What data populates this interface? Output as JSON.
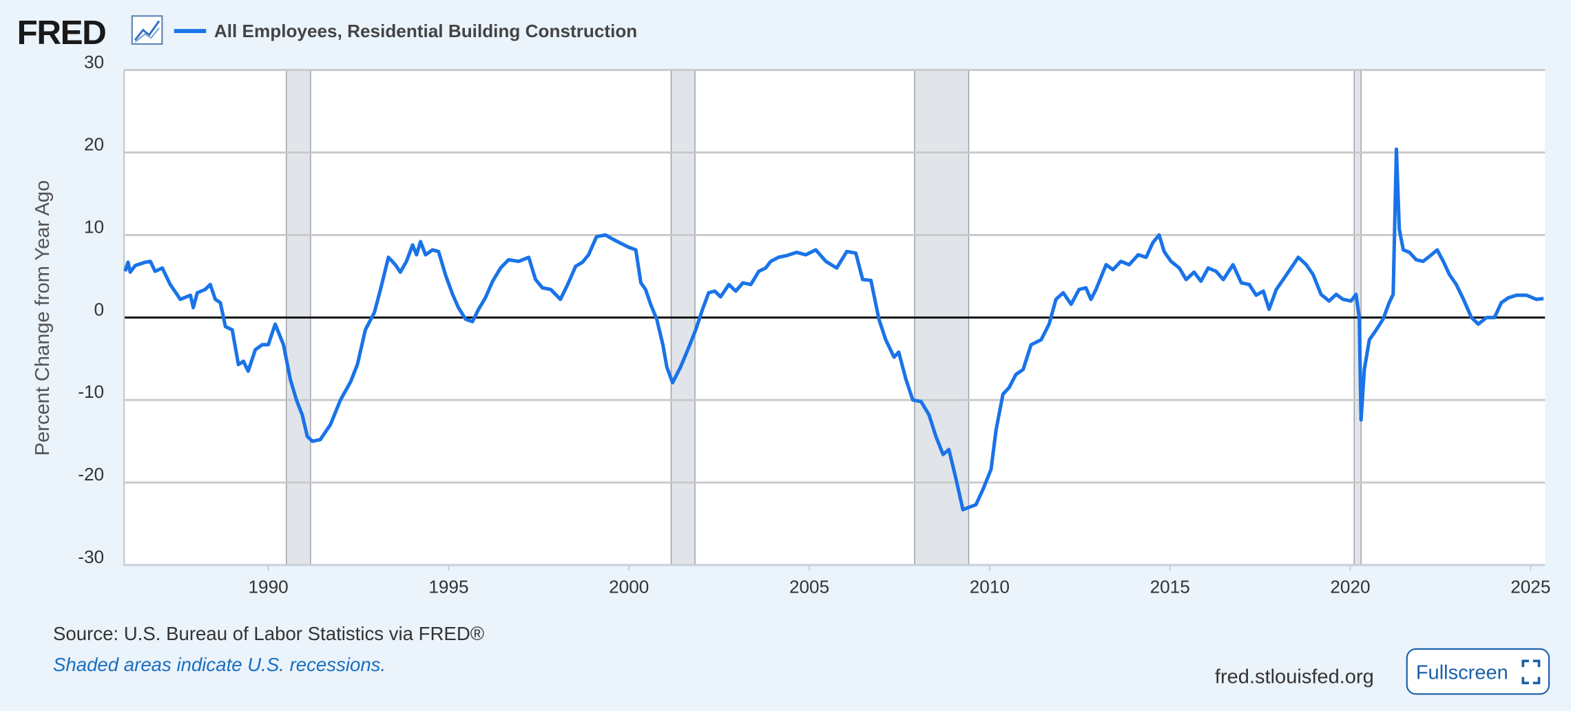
{
  "logo": "FRED",
  "footer": {
    "source": "Source: U.S. Bureau of Labor Statistics via FRED®",
    "note": "Shaded areas indicate U.S. recessions.",
    "site": "fred.stlouisfed.org",
    "button": "Fullscreen"
  },
  "chart_data": {
    "type": "line",
    "ylabel": "Percent Change from Year Ago",
    "xlim": [
      1986,
      2025.4
    ],
    "ylim": [
      -30,
      30
    ],
    "xticks": [
      1990,
      1995,
      2000,
      2005,
      2010,
      2015,
      2020,
      2025
    ],
    "yticks": [
      -30,
      -20,
      -10,
      0,
      10,
      20,
      30
    ],
    "grid": true,
    "recessions": [
      [
        1990.5,
        1991.17
      ],
      [
        2001.17,
        2001.83
      ],
      [
        2007.92,
        2009.42
      ],
      [
        2020.11,
        2020.3
      ]
    ],
    "x": [
      1986.03,
      1986.11,
      1986.17,
      1986.31,
      1986.59,
      1986.73,
      1986.86,
      1987.06,
      1987.28,
      1987.56,
      1987.84,
      1987.92,
      1988.03,
      1988.25,
      1988.39,
      1988.53,
      1988.67,
      1988.81,
      1989.0,
      1989.17,
      1989.31,
      1989.44,
      1989.64,
      1989.83,
      1990.0,
      1990.19,
      1990.42,
      1990.61,
      1990.78,
      1990.94,
      1991.08,
      1991.22,
      1991.44,
      1991.72,
      1992.0,
      1992.28,
      1992.47,
      1992.69,
      1992.94,
      1993.11,
      1993.33,
      1993.52,
      1993.66,
      1993.83,
      1994.0,
      1994.11,
      1994.22,
      1994.36,
      1994.55,
      1994.72,
      1994.91,
      1995.11,
      1995.27,
      1995.47,
      1995.66,
      1995.83,
      1996.02,
      1996.22,
      1996.44,
      1996.66,
      1996.94,
      1997.22,
      1997.41,
      1997.6,
      1997.83,
      1998.1,
      1998.3,
      1998.52,
      1998.71,
      1998.88,
      1999.1,
      1999.35,
      1999.55,
      1999.77,
      2000.0,
      2000.19,
      2000.33,
      2000.46,
      2000.6,
      2000.77,
      2000.94,
      2001.05,
      2001.21,
      2001.43,
      2001.66,
      2001.85,
      2002.04,
      2002.21,
      2002.38,
      2002.54,
      2002.77,
      2002.96,
      2003.16,
      2003.38,
      2003.6,
      2003.79,
      2003.93,
      2004.15,
      2004.37,
      2004.65,
      2004.9,
      2005.18,
      2005.46,
      2005.76,
      2006.04,
      2006.29,
      2006.48,
      2006.71,
      2006.93,
      2007.12,
      2007.35,
      2007.48,
      2007.68,
      2007.87,
      2008.1,
      2008.32,
      2008.51,
      2008.71,
      2008.87,
      2009.07,
      2009.26,
      2009.43,
      2009.62,
      2009.82,
      2010.04,
      2010.18,
      2010.37,
      2010.54,
      2010.73,
      2010.93,
      2011.15,
      2011.43,
      2011.65,
      2011.84,
      2012.04,
      2012.26,
      2012.48,
      2012.67,
      2012.81,
      2012.95,
      2013.23,
      2013.42,
      2013.64,
      2013.87,
      2014.12,
      2014.34,
      2014.53,
      2014.7,
      2014.84,
      2015.03,
      2015.26,
      2015.45,
      2015.67,
      2015.86,
      2016.06,
      2016.28,
      2016.48,
      2016.75,
      2016.98,
      2017.2,
      2017.39,
      2017.59,
      2017.75,
      2017.95,
      2018.14,
      2018.36,
      2018.56,
      2018.78,
      2018.97,
      2019.19,
      2019.41,
      2019.61,
      2019.8,
      2020.02,
      2020.16,
      2020.25,
      2020.3,
      2020.39,
      2020.53,
      2020.72,
      2020.91,
      2021.08,
      2021.19,
      2021.28,
      2021.36,
      2021.47,
      2021.64,
      2021.83,
      2022.02,
      2022.25,
      2022.41,
      2022.58,
      2022.75,
      2022.94,
      2023.14,
      2023.36,
      2023.55,
      2023.78,
      2024.0,
      2024.19,
      2024.39,
      2024.61,
      2024.89,
      2025.16,
      2025.36
    ],
    "series": [
      {
        "name": "All Employees, Residential Building Construction",
        "color": "#1a73e8",
        "values": [
          5.6,
          6.7,
          5.5,
          6.3,
          6.7,
          6.8,
          5.6,
          6,
          4,
          2.2,
          2.7,
          1.2,
          3,
          3.4,
          4,
          2.2,
          1.8,
          -1.1,
          -1.5,
          -5.7,
          -5.3,
          -6.5,
          -3.9,
          -3.3,
          -3.3,
          -0.8,
          -3.3,
          -7.5,
          -10,
          -11.8,
          -14.4,
          -15,
          -14.8,
          -13,
          -10,
          -7.8,
          -5.7,
          -1.5,
          0.6,
          3.4,
          7.3,
          6.4,
          5.5,
          6.8,
          8.8,
          7.6,
          9.2,
          7.6,
          8.2,
          8,
          5.2,
          2.8,
          1.2,
          -0.2,
          -0.5,
          1,
          2.4,
          4.4,
          6,
          7,
          6.8,
          7.3,
          4.6,
          3.6,
          3.4,
          2.2,
          4,
          6.2,
          6.7,
          7.6,
          9.8,
          10,
          9.5,
          9,
          8.5,
          8.2,
          4.2,
          3.4,
          1.6,
          -0.2,
          -3.3,
          -6,
          -7.9,
          -6,
          -3.6,
          -1.5,
          1,
          3,
          3.2,
          2.5,
          4,
          3.2,
          4.2,
          4,
          5.6,
          6,
          6.8,
          7.3,
          7.5,
          7.9,
          7.6,
          8.2,
          6.8,
          6,
          8,
          7.8,
          4.6,
          4.5,
          -0.2,
          -2.7,
          -4.8,
          -4.2,
          -7.5,
          -10,
          -10.2,
          -11.8,
          -14.4,
          -16.6,
          -16,
          -19.6,
          -23.3,
          -23,
          -22.7,
          -20.8,
          -18.4,
          -13.6,
          -9.3,
          -8.5,
          -6.9,
          -6.3,
          -3.3,
          -2.7,
          -0.8,
          2.2,
          3,
          1.6,
          3.4,
          3.6,
          2.2,
          3.4,
          6.4,
          5.8,
          6.8,
          6.4,
          7.6,
          7.3,
          9.1,
          10,
          8,
          6.8,
          6,
          4.6,
          5.5,
          4.4,
          6,
          5.6,
          4.6,
          6.4,
          4.2,
          4,
          2.7,
          3.2,
          1,
          3.4,
          4.6,
          6,
          7.3,
          6.4,
          5.2,
          2.8,
          2,
          2.8,
          2.2,
          2,
          2.8,
          0,
          -12.4,
          -6.3,
          -2.7,
          -1.5,
          -0.2,
          1.8,
          2.8,
          20.4,
          10.7,
          8.2,
          7.9,
          7,
          6.8,
          7.6,
          8.2,
          6.8,
          5.2,
          4,
          2.2,
          0,
          -0.8,
          0,
          0,
          1.8,
          2.4,
          2.7,
          2.7,
          2.2,
          2.3
        ]
      }
    ]
  }
}
